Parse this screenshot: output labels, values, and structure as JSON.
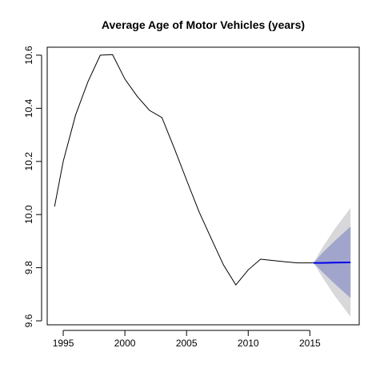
{
  "chart_data": {
    "type": "line",
    "title": "Average Age of Motor Vehicles (years)",
    "xlabel": "",
    "ylabel": "",
    "xlim": [
      1993.7,
      2019.0
    ],
    "ylim": [
      9.585,
      10.63
    ],
    "x_ticks": [
      1995,
      2000,
      2005,
      2010,
      2015
    ],
    "y_ticks": [
      9.6,
      9.8,
      10.0,
      10.2,
      10.4,
      10.6
    ],
    "history": {
      "x": [
        1994.3,
        1995,
        1996,
        1997,
        1998,
        1999,
        2000,
        2001,
        2002,
        2003,
        2004,
        2005,
        2006,
        2007,
        2008,
        2009,
        2010,
        2011,
        2012,
        2013,
        2014,
        2015,
        2015.3
      ],
      "y": [
        10.03,
        10.2,
        10.375,
        10.5,
        10.6,
        10.602,
        10.51,
        10.445,
        10.392,
        10.365,
        10.25,
        10.13,
        10.012,
        9.91,
        9.81,
        9.735,
        9.792,
        9.832,
        9.827,
        9.822,
        9.818,
        9.818,
        9.818
      ]
    },
    "forecast": {
      "x": [
        2015.3,
        2016,
        2017,
        2018.3
      ],
      "mean": [
        9.818,
        9.818,
        9.819,
        9.82
      ],
      "lower_80": [
        9.818,
        9.784,
        9.74,
        9.686
      ],
      "upper_80": [
        9.818,
        9.855,
        9.9,
        9.955
      ],
      "lower_95": [
        9.818,
        9.765,
        9.695,
        9.615
      ],
      "upper_95": [
        9.818,
        9.875,
        9.945,
        10.025
      ]
    },
    "grid": false,
    "legend": "none",
    "colors": {
      "history_line": "#000000",
      "forecast_line": "#0000ee",
      "band_80": "#a1a5cb",
      "band_95": "#d8d8da",
      "axis": "#000000"
    }
  }
}
